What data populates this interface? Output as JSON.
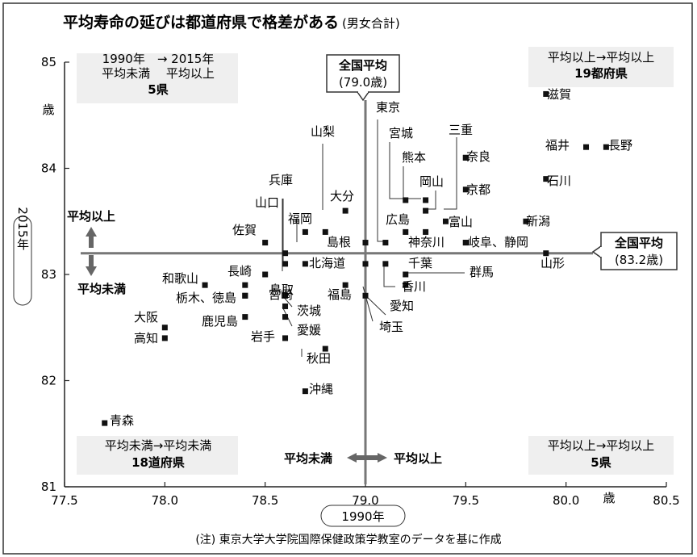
{
  "chart_data": {
    "type": "scatter",
    "title": "平均寿命の延びは都道府県で格差がある",
    "subtitle": "(男女合計)",
    "xlabel": "1990年",
    "ylabel": "2015年",
    "xunit": "歳",
    "yunit": "歳",
    "xlim": [
      77.5,
      80.5
    ],
    "ylim": [
      81,
      85
    ],
    "x_ticks": [
      "77.5",
      "78.0",
      "78.5",
      "79.0",
      "79.5",
      "80.0",
      "80.5"
    ],
    "y_ticks": [
      "81",
      "82",
      "83",
      "84",
      "85"
    ],
    "national_avg": {
      "x": 79.0,
      "y": 83.2,
      "x_label": "全国平均",
      "x_value": "(79.0歳)",
      "y_label": "全国平均",
      "y_value": "(83.2歳)"
    },
    "arrows": {
      "x_below": "平均未満",
      "x_above": "平均以上",
      "y_above": "平均以上",
      "y_below": "平均未満"
    },
    "quadrants": {
      "top_left": [
        "1990年　→ 2015年",
        "平均未満　 平均以上",
        "5県"
      ],
      "top_right": [
        "平均以上→平均以上",
        "19都府県"
      ],
      "bottom_left": [
        "平均未満→平均未満",
        "18道府県"
      ],
      "bottom_right": [
        "平均以上→平均以上",
        "5県"
      ]
    },
    "points": [
      {
        "name": "青森",
        "x": 77.7,
        "y": 81.6
      },
      {
        "name": "大阪",
        "x": 78.0,
        "y": 82.5
      },
      {
        "name": "高知",
        "x": 78.0,
        "y": 82.4
      },
      {
        "name": "和歌山",
        "x": 78.2,
        "y": 82.9
      },
      {
        "name": "栃木",
        "x": 78.4,
        "y": 82.8
      },
      {
        "name": "徳島",
        "x": 78.4,
        "y": 82.8
      },
      {
        "name": "長崎",
        "x": 78.4,
        "y": 82.9
      },
      {
        "name": "鹿児島",
        "x": 78.4,
        "y": 82.6
      },
      {
        "name": "佐賀",
        "x": 78.5,
        "y": 83.3
      },
      {
        "name": "宮崎",
        "x": 78.5,
        "y": 83.0
      },
      {
        "name": "岩手",
        "x": 78.6,
        "y": 82.4
      },
      {
        "name": "鳥取",
        "x": 78.6,
        "y": 82.8
      },
      {
        "name": "茨城",
        "x": 78.6,
        "y": 82.7
      },
      {
        "name": "愛媛",
        "x": 78.6,
        "y": 82.6
      },
      {
        "name": "山口",
        "x": 78.6,
        "y": 83.2
      },
      {
        "name": "兵庫",
        "x": 78.6,
        "y": 83.1
      },
      {
        "name": "福岡",
        "x": 78.7,
        "y": 83.4
      },
      {
        "name": "北海道",
        "x": 78.7,
        "y": 83.1
      },
      {
        "name": "沖縄",
        "x": 78.7,
        "y": 81.9
      },
      {
        "name": "秋田",
        "x": 78.8,
        "y": 82.3
      },
      {
        "name": "山梨",
        "x": 78.8,
        "y": 83.4
      },
      {
        "name": "福島",
        "x": 78.9,
        "y": 82.9
      },
      {
        "name": "大分",
        "x": 78.9,
        "y": 83.6
      },
      {
        "name": "島根",
        "x": 79.0,
        "y": 83.3
      },
      {
        "name": "愛知",
        "x": 79.0,
        "y": 82.8
      },
      {
        "name": "埼玉",
        "x": 79.0,
        "y": 83.1
      },
      {
        "name": "東京",
        "x": 79.1,
        "y": 83.3
      },
      {
        "name": "千葉",
        "x": 79.1,
        "y": 83.1
      },
      {
        "name": "香川",
        "x": 79.2,
        "y": 82.9
      },
      {
        "name": "宮城",
        "x": 79.2,
        "y": 83.7
      },
      {
        "name": "広島",
        "x": 79.2,
        "y": 83.4
      },
      {
        "name": "群馬",
        "x": 79.2,
        "y": 83.0
      },
      {
        "name": "熊本",
        "x": 79.3,
        "y": 83.7
      },
      {
        "name": "岡山",
        "x": 79.3,
        "y": 83.6
      },
      {
        "name": "神奈川",
        "x": 79.3,
        "y": 83.4
      },
      {
        "name": "富山",
        "x": 79.4,
        "y": 83.5
      },
      {
        "name": "三重",
        "x": 79.5,
        "y": 84.1
      },
      {
        "name": "奈良",
        "x": 79.5,
        "y": 84.1
      },
      {
        "name": "京都",
        "x": 79.5,
        "y": 83.8
      },
      {
        "name": "岐阜",
        "x": 79.5,
        "y": 83.3
      },
      {
        "name": "静岡",
        "x": 79.5,
        "y": 83.3
      },
      {
        "name": "新潟",
        "x": 79.8,
        "y": 83.5
      },
      {
        "name": "山形",
        "x": 79.9,
        "y": 83.2
      },
      {
        "name": "滋賀",
        "x": 79.9,
        "y": 84.7
      },
      {
        "name": "石川",
        "x": 79.9,
        "y": 83.9
      },
      {
        "name": "福井",
        "x": 80.1,
        "y": 84.2
      },
      {
        "name": "長野",
        "x": 80.2,
        "y": 84.2
      }
    ],
    "note": "(注) 東京大学大学院国際保健政策学教室のデータを基に作成"
  }
}
